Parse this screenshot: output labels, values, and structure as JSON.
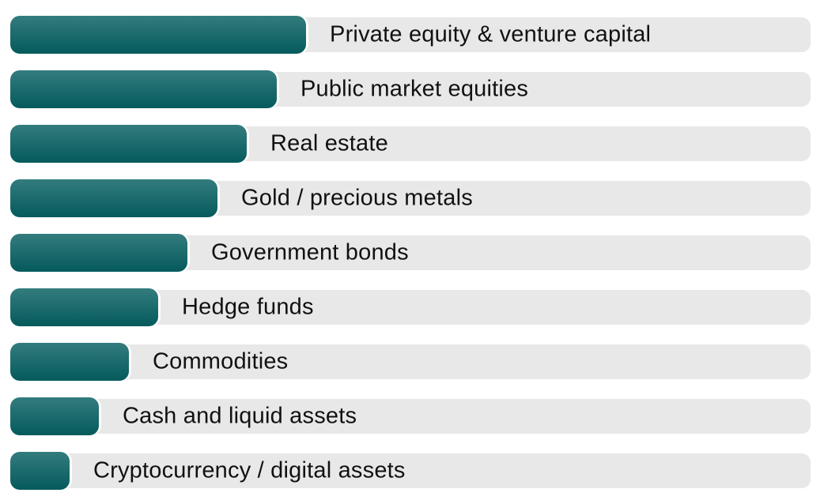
{
  "chart_data": {
    "type": "bar",
    "orientation": "horizontal",
    "title": "",
    "xlabel": "",
    "ylabel": "",
    "legend_position": "none",
    "grid": false,
    "axis_labels_visible": false,
    "value_labels_visible": false,
    "categories": [
      "Private equity & venture capital",
      "Public market equities",
      "Real estate",
      "Gold / precious metals",
      "Government bonds",
      "Hedge funds",
      "Commodities",
      "Cash and liquid assets",
      "Cryptocurrency / digital assets"
    ],
    "bar_length_pct_of_track": [
      36.96,
      33.3,
      29.55,
      25.89,
      22.13,
      18.48,
      14.82,
      11.07,
      7.41
    ],
    "relative_rank_values": [
      10,
      9,
      8,
      7,
      6,
      5,
      4,
      3,
      2
    ],
    "colors": {
      "bar_gradient_top": "#337c7e",
      "bar_gradient_bottom": "#055a5c",
      "track": "#e8e8e8",
      "label_text": "#111111",
      "background": "#ffffff"
    }
  }
}
